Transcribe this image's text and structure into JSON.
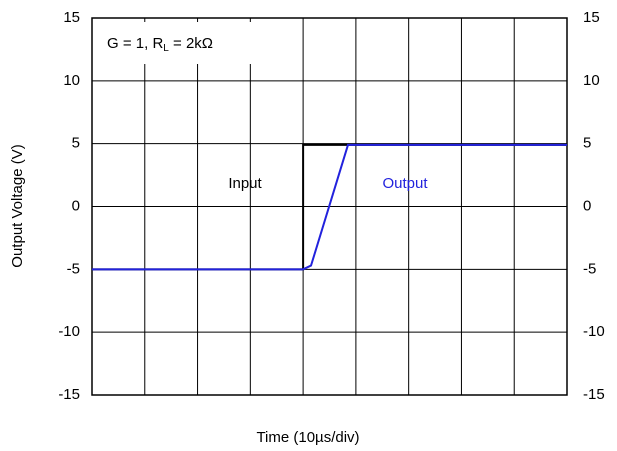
{
  "chart_data": {
    "type": "line",
    "x_label": "Time (10µs/div)",
    "y_label": "Output Voltage (V)",
    "annotation": {
      "main": "G = 1, R",
      "sub": "L",
      "rest": " = 2kΩ"
    },
    "xlim": [
      0,
      90
    ],
    "xticks": [
      0,
      10,
      20,
      30,
      40,
      50,
      60,
      70,
      80,
      90
    ],
    "ylim": [
      -15,
      15
    ],
    "yticks": [
      -15,
      -10,
      -5,
      0,
      5,
      10,
      15
    ],
    "grid": true,
    "series": [
      {
        "name": "Input",
        "color": "#000000",
        "x": [
          0,
          40,
          40,
          90
        ],
        "values": [
          -5,
          -5,
          4.9,
          4.9
        ]
      },
      {
        "name": "Output",
        "color": "#2222dd",
        "x": [
          0,
          40,
          41.5,
          48.5,
          90
        ],
        "values": [
          -5,
          -5,
          -4.7,
          4.9,
          4.9
        ]
      }
    ]
  }
}
